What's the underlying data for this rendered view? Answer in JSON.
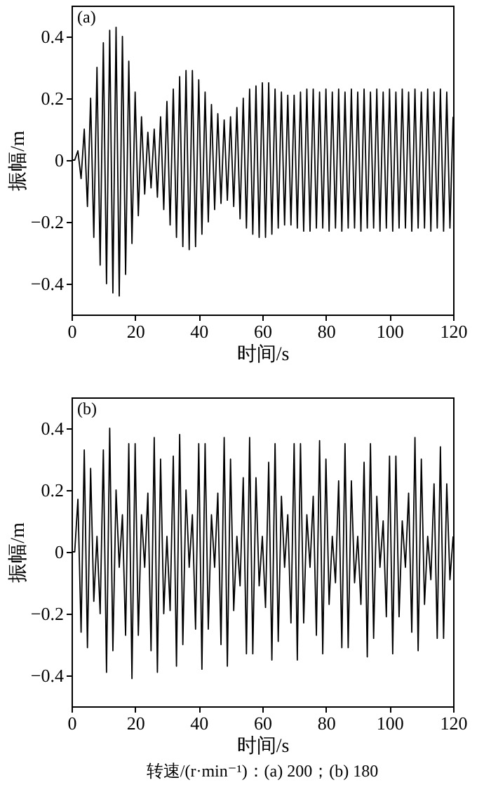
{
  "chart_data": [
    {
      "type": "line",
      "xlabel": "时间/s",
      "ylabel": "振幅/m",
      "annotations": [
        "(a)"
      ],
      "xlim": [
        0,
        120
      ],
      "xticks": [
        0,
        20,
        40,
        60,
        80,
        100,
        120
      ],
      "ylim": [
        -0.5,
        0.5
      ],
      "yticks": [
        -0.4,
        -0.2,
        0,
        0.2,
        0.4
      ],
      "x": [
        0,
        1,
        2,
        3,
        4,
        5,
        6,
        7,
        8,
        9,
        10,
        11,
        12,
        13,
        14,
        15,
        16,
        17,
        18,
        19,
        20,
        21,
        22,
        23,
        24,
        25,
        26,
        27,
        28,
        29,
        30,
        31,
        32,
        33,
        34,
        35,
        36,
        37,
        38,
        39,
        40,
        41,
        42,
        43,
        44,
        45,
        46,
        47,
        48,
        49,
        50,
        51,
        52,
        53,
        54,
        55,
        56,
        57,
        58,
        59,
        60,
        61,
        62,
        63,
        64,
        65,
        66,
        67,
        68,
        69,
        70,
        71,
        72,
        73,
        74,
        75,
        76,
        77,
        78,
        79,
        80,
        81,
        82,
        83,
        84,
        85,
        86,
        87,
        88,
        89,
        90,
        91,
        92,
        93,
        94,
        95,
        96,
        97,
        98,
        99,
        100,
        101,
        102,
        103,
        104,
        105,
        106,
        107,
        108,
        109,
        110,
        111,
        112,
        113,
        114,
        115,
        116,
        117,
        118,
        119,
        120
      ],
      "series": [
        {
          "color": "#000000",
          "values": [
            0,
            0,
            0.03,
            -0.06,
            0.1,
            -0.15,
            0.2,
            -0.25,
            0.3,
            -0.34,
            0.38,
            -0.4,
            0.42,
            -0.43,
            0.43,
            -0.44,
            0.4,
            -0.37,
            0.32,
            -0.27,
            0.22,
            -0.18,
            0.14,
            -0.11,
            0.09,
            -0.09,
            0.1,
            -0.12,
            0.14,
            -0.16,
            0.19,
            -0.21,
            0.23,
            -0.25,
            0.27,
            -0.28,
            0.29,
            -0.29,
            0.29,
            -0.28,
            0.26,
            -0.24,
            0.22,
            -0.2,
            0.18,
            -0.16,
            0.15,
            -0.14,
            0.13,
            -0.13,
            0.14,
            -0.15,
            0.17,
            -0.19,
            0.2,
            -0.22,
            0.23,
            -0.24,
            0.24,
            -0.25,
            0.25,
            -0.25,
            0.25,
            -0.24,
            0.23,
            -0.22,
            0.22,
            -0.21,
            0.21,
            -0.21,
            0.21,
            -0.22,
            0.22,
            -0.23,
            0.23,
            -0.23,
            0.23,
            -0.22,
            0.22,
            -0.22,
            0.23,
            -0.23,
            0.22,
            -0.22,
            0.23,
            -0.23,
            0.22,
            -0.22,
            0.23,
            -0.22,
            0.22,
            -0.23,
            0.23,
            -0.22,
            0.22,
            -0.22,
            0.23,
            -0.23,
            0.22,
            -0.22,
            0.23,
            -0.23,
            0.22,
            -0.22,
            0.23,
            -0.22,
            0.22,
            -0.23,
            0.23,
            -0.22,
            0.22,
            -0.22,
            0.23,
            -0.23,
            0.22,
            -0.22,
            0.23,
            -0.23,
            0.22,
            -0.22,
            0.14
          ]
        }
      ]
    },
    {
      "type": "line",
      "xlabel": "时间/s",
      "ylabel": "振幅/m",
      "annotations": [
        "(b)",
        "转速/(r·min⁻¹)：(a) 200；(b) 180"
      ],
      "xlim": [
        0,
        120
      ],
      "xticks": [
        0,
        20,
        40,
        60,
        80,
        100,
        120
      ],
      "ylim": [
        -0.5,
        0.5
      ],
      "yticks": [
        -0.4,
        -0.2,
        0,
        0.2,
        0.4
      ],
      "x": [
        0,
        1,
        2,
        3,
        4,
        5,
        6,
        7,
        8,
        9,
        10,
        11,
        12,
        13,
        14,
        15,
        16,
        17,
        18,
        19,
        20,
        21,
        22,
        23,
        24,
        25,
        26,
        27,
        28,
        29,
        30,
        31,
        32,
        33,
        34,
        35,
        36,
        37,
        38,
        39,
        40,
        41,
        42,
        43,
        44,
        45,
        46,
        47,
        48,
        49,
        50,
        51,
        52,
        53,
        54,
        55,
        56,
        57,
        58,
        59,
        60,
        61,
        62,
        63,
        64,
        65,
        66,
        67,
        68,
        69,
        70,
        71,
        72,
        73,
        74,
        75,
        76,
        77,
        78,
        79,
        80,
        81,
        82,
        83,
        84,
        85,
        86,
        87,
        88,
        89,
        90,
        91,
        92,
        93,
        94,
        95,
        96,
        97,
        98,
        99,
        100,
        101,
        102,
        103,
        104,
        105,
        106,
        107,
        108,
        109,
        110,
        111,
        112,
        113,
        114,
        115,
        116,
        117,
        118,
        119,
        120
      ],
      "series": [
        {
          "color": "#000000",
          "values": [
            0,
            0,
            0.17,
            -0.26,
            0.33,
            -0.31,
            0.27,
            -0.16,
            0.05,
            -0.2,
            0.33,
            -0.39,
            0.4,
            -0.32,
            0.2,
            -0.05,
            0.12,
            -0.27,
            0.35,
            -0.41,
            0.35,
            -0.27,
            0.12,
            -0.05,
            0.19,
            -0.32,
            0.37,
            -0.39,
            0.3,
            -0.2,
            0.05,
            -0.19,
            0.31,
            -0.37,
            0.38,
            -0.3,
            0.2,
            -0.05,
            0.12,
            -0.25,
            0.35,
            -0.38,
            0.35,
            -0.25,
            0.12,
            -0.05,
            0.19,
            -0.3,
            0.37,
            -0.37,
            0.3,
            -0.19,
            0.05,
            -0.11,
            0.24,
            -0.33,
            0.37,
            -0.33,
            0.24,
            -0.11,
            0.05,
            -0.18,
            0.29,
            -0.35,
            0.35,
            -0.29,
            0.18,
            -0.05,
            0.12,
            -0.23,
            0.35,
            -0.35,
            0.35,
            -0.23,
            0.12,
            -0.05,
            0.18,
            -0.27,
            0.36,
            -0.33,
            0.3,
            -0.17,
            0.05,
            -0.1,
            0.23,
            -0.31,
            0.35,
            -0.31,
            0.23,
            -0.1,
            0.05,
            -0.17,
            0.29,
            -0.34,
            0.35,
            -0.28,
            0.18,
            -0.05,
            0.1,
            -0.21,
            0.31,
            -0.33,
            0.31,
            -0.21,
            0.1,
            -0.05,
            0.19,
            -0.26,
            0.37,
            -0.32,
            0.3,
            -0.17,
            0.05,
            -0.09,
            0.22,
            -0.28,
            0.34,
            -0.28,
            0.22,
            -0.09,
            0.05
          ]
        }
      ]
    }
  ]
}
